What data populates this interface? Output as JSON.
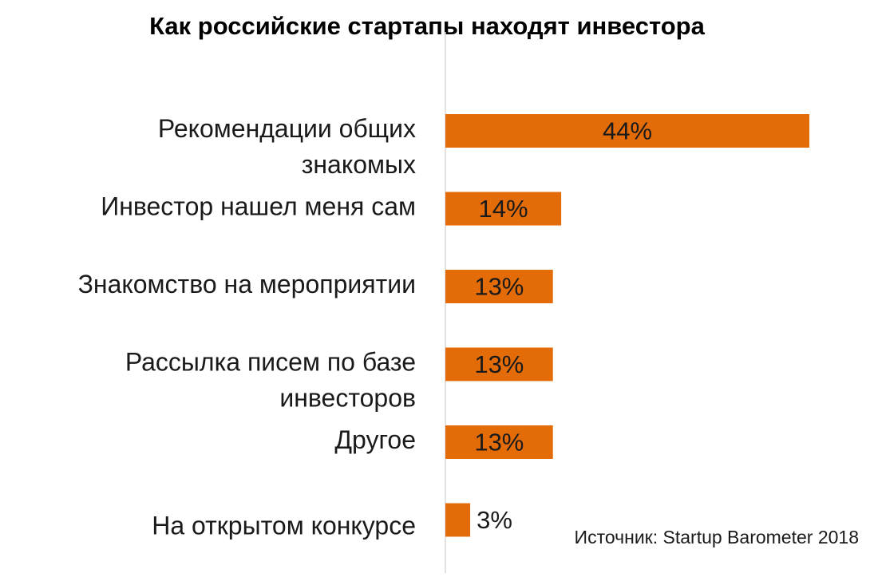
{
  "chart_data": {
    "type": "bar",
    "orientation": "horizontal",
    "title": "Как российские стартапы находят инвестора",
    "categories": [
      [
        "Рекомендации общих",
        "знакомых"
      ],
      [
        "Инвестор нашел меня сам"
      ],
      [
        "Знакомство на мероприятии"
      ],
      [
        "Рассылка писем по базе",
        "инвесторов"
      ],
      [
        "Другое"
      ],
      [
        "На открытом конкурсе"
      ]
    ],
    "values": [
      44,
      14,
      13,
      13,
      13,
      3
    ],
    "data_labels": [
      "44%",
      "14%",
      "13%",
      "13%",
      "13%",
      "3%"
    ],
    "unit": "%",
    "xlim": [
      0,
      50
    ],
    "grid": false,
    "legend": "none",
    "bar_color": "#E36C09",
    "axis_color": "#D9D9D9"
  },
  "source": "Источник: Startup Barometer 2018"
}
